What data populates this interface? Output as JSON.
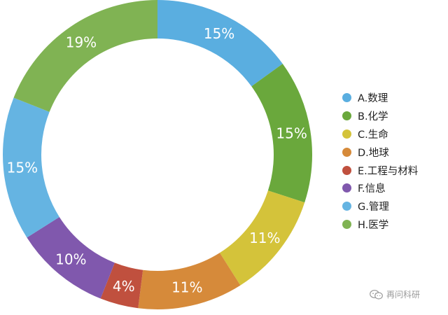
{
  "chart_data": {
    "type": "pie",
    "style": "donut",
    "start": "top",
    "direction": "clockwise",
    "legend": "right",
    "slices": [
      {
        "name": "A.数理",
        "value": 15,
        "label": "15%",
        "color": "#5aaee0"
      },
      {
        "name": "B.化学",
        "value": 15,
        "label": "15%",
        "color": "#6aa83c"
      },
      {
        "name": "C.生命",
        "value": 11,
        "label": "11%",
        "color": "#d4c33a"
      },
      {
        "name": "D.地球",
        "value": 11,
        "label": "11%",
        "color": "#d68a3a"
      },
      {
        "name": "E.工程与材料",
        "value": 4,
        "label": "4%",
        "color": "#c0503e"
      },
      {
        "name": "F.信息",
        "value": 10,
        "label": "10%",
        "color": "#8058ad"
      },
      {
        "name": "G.管理",
        "value": 15,
        "label": "15%",
        "color": "#65b4e2"
      },
      {
        "name": "H.医学",
        "value": 19,
        "label": "19%",
        "color": "#80b353"
      }
    ]
  },
  "watermark": {
    "text": "再问科研",
    "icon": "chat-bubble-icon"
  }
}
